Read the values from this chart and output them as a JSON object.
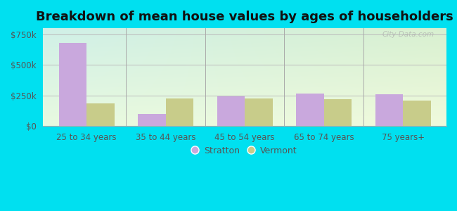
{
  "title": "Breakdown of mean house values by ages of householders",
  "categories": [
    "25 to 34 years",
    "35 to 44 years",
    "45 to 54 years",
    "65 to 74 years",
    "75 years+"
  ],
  "stratton_values": [
    680000,
    100000,
    242000,
    265000,
    263000
  ],
  "vermont_values": [
    185000,
    225000,
    228000,
    223000,
    208000
  ],
  "stratton_color": "#c9a8dd",
  "vermont_color": "#c8cc8a",
  "ylim": [
    0,
    800000
  ],
  "yticks": [
    0,
    250000,
    500000,
    750000
  ],
  "ytick_labels": [
    "$0",
    "$250k",
    "$500k",
    "$750k"
  ],
  "bg_topleft": "#d0f0e8",
  "bg_topright": "#d8f0d0",
  "bg_bottomleft": "#e8fae0",
  "bg_bottomright": "#f0fadc",
  "outer_background": "#00e0f0",
  "bar_width": 0.35,
  "title_fontsize": 13,
  "watermark": "City-Data.com",
  "legend_labels": [
    "Stratton",
    "Vermont"
  ],
  "xlim_left": -0.55,
  "xlim_right": 4.55
}
